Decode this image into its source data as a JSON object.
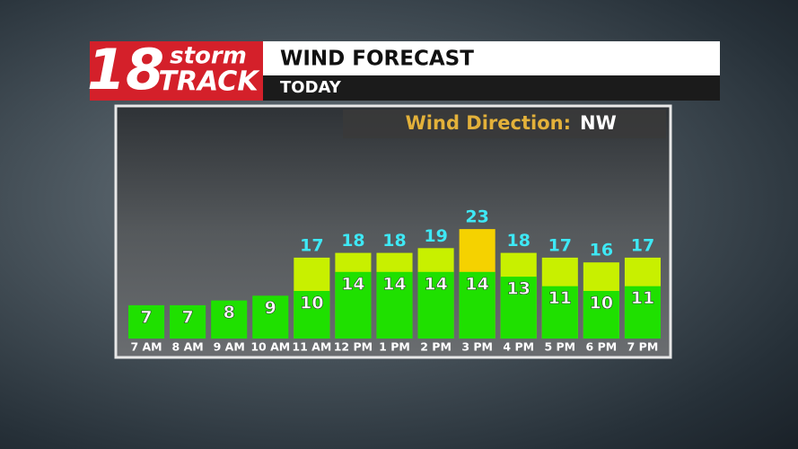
{
  "header": {
    "logo_number": "18",
    "logo_word_top": "storm",
    "logo_word_bottom": "TRACK",
    "title": "WIND FORECAST",
    "subtitle": "TODAY"
  },
  "chart_data": {
    "type": "bar",
    "direction_label": "Wind Direction:",
    "direction_value": "NW",
    "categories": [
      "7 AM",
      "8 AM",
      "9 AM",
      "10 AM",
      "11 AM",
      "12 PM",
      "1 PM",
      "2 PM",
      "3 PM",
      "4 PM",
      "5 PM",
      "6 PM",
      "7 PM"
    ],
    "series": [
      {
        "color": "#1fe000",
        "label_color": "#ffffff",
        "values": [
          7,
          7,
          8,
          9,
          10,
          14,
          14,
          14,
          14,
          13,
          11,
          10,
          11
        ]
      },
      {
        "color": "#c8f000",
        "max_color": "#f5d200",
        "label_color": "#3ee8f5",
        "values": [
          null,
          null,
          null,
          null,
          17,
          18,
          18,
          19,
          23,
          18,
          17,
          16,
          17
        ]
      }
    ]
  }
}
